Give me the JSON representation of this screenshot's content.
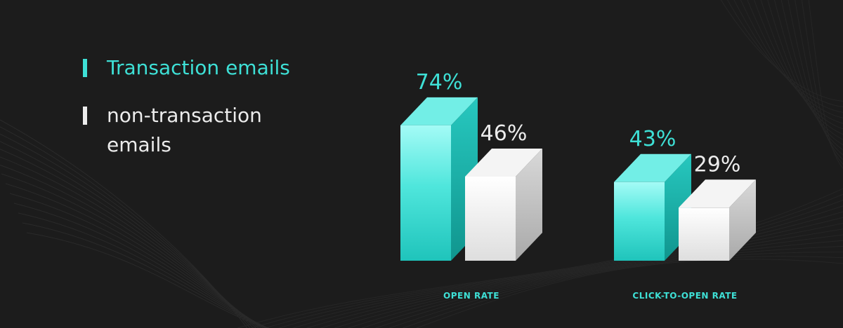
{
  "colors": {
    "background": "#1c1c1c",
    "transaction": "#3ee0d6",
    "non_transaction": "#ececec",
    "category_label": "#3ee0d6"
  },
  "legend": {
    "items": [
      {
        "label": "Transaction emails",
        "color": "#3ee0d6"
      },
      {
        "label": "non-transaction emails",
        "color": "#ececec"
      }
    ]
  },
  "chart_data": {
    "type": "bar",
    "categories": [
      "OPEN RATE",
      "CLICK-TO-OPEN RATE"
    ],
    "series": [
      {
        "name": "Transaction emails",
        "values": [
          74,
          43
        ],
        "labels": [
          "74%",
          "43%"
        ],
        "color": "#3ee0d6"
      },
      {
        "name": "non-transaction emails",
        "values": [
          46,
          29
        ],
        "labels": [
          "46%",
          "29%"
        ],
        "color": "#ececec"
      }
    ],
    "ylim": [
      0,
      100
    ],
    "grid": false,
    "legend_position": "left"
  }
}
